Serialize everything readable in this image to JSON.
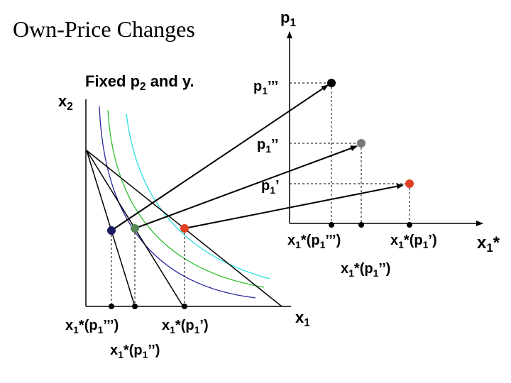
{
  "title": "Own-Price Changes",
  "note": [
    "Fixed p",
    "2",
    " and y."
  ],
  "axes": {
    "left_y": [
      "x",
      "2"
    ],
    "left_x": [
      "x",
      "1"
    ],
    "right_y": [
      "p",
      "1"
    ],
    "right_x": [
      "x",
      "1",
      "*"
    ]
  },
  "price_labels": [
    [
      "p",
      "1",
      "’’’"
    ],
    [
      "p",
      "1",
      "’’"
    ],
    [
      "p",
      "1",
      "’"
    ]
  ],
  "right_x_labels": [
    [
      "x",
      "1",
      "*(p",
      "1",
      "’’’)"
    ],
    [
      "x",
      "1",
      "*(p",
      "1",
      "’’)"
    ],
    [
      "x",
      "1",
      "*(p",
      "1",
      "’)"
    ]
  ],
  "left_x_labels": [
    [
      "x",
      "1",
      "*(p",
      "1",
      "’’’)"
    ],
    [
      "x",
      "1",
      "*(p",
      "1",
      "’’)"
    ],
    [
      "x",
      "1",
      "*(p",
      "1",
      "’)"
    ]
  ]
}
